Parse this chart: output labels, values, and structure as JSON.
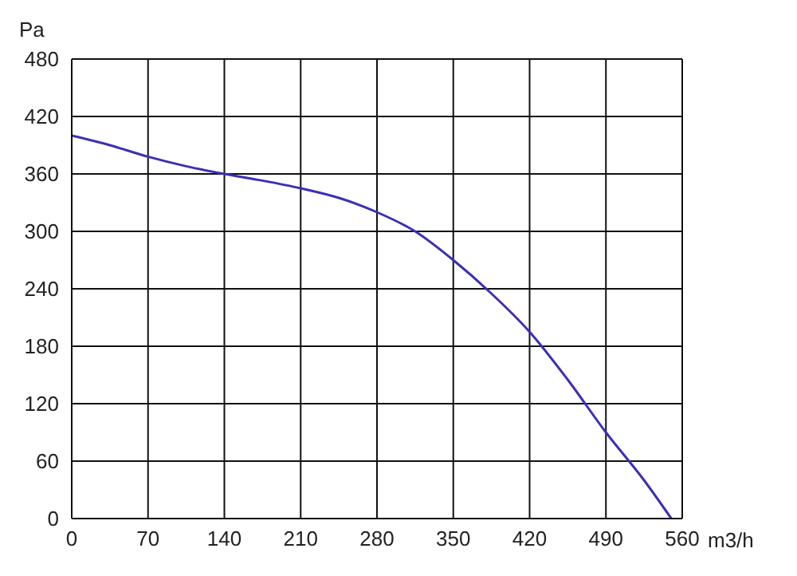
{
  "chart_data": {
    "type": "line",
    "xlabel": "m3/h",
    "ylabel": "Pa",
    "x": [
      0,
      35,
      70,
      105,
      140,
      175,
      210,
      245,
      280,
      315,
      350,
      385,
      420,
      455,
      490,
      525,
      550
    ],
    "series": [
      {
        "color": "#3b2fb5",
        "values": [
          400,
          390,
          378,
          368,
          360,
          353,
          345,
          335,
          320,
          300,
          270,
          235,
          195,
          145,
          90,
          40,
          0
        ]
      }
    ],
    "xlim": [
      0,
      560
    ],
    "xticks": [
      0,
      70,
      140,
      210,
      280,
      350,
      420,
      490,
      560
    ],
    "ylim": [
      0,
      480
    ],
    "yticks": [
      0,
      60,
      120,
      180,
      240,
      300,
      360,
      420,
      480
    ],
    "grid": true,
    "marker": "none",
    "line_style": "solid"
  }
}
